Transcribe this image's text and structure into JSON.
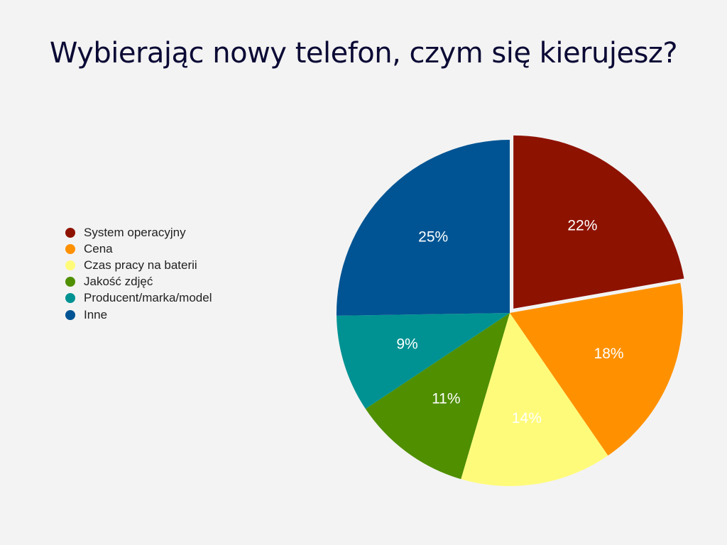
{
  "title": "Wybierając nowy telefon, czym się kierujesz?",
  "legend": [
    {
      "label": "System operacyjny",
      "color": "#8E1200"
    },
    {
      "label": "Cena",
      "color": "#FF9100"
    },
    {
      "label": "Czas pracy na baterii",
      "color": "#FFFB7A"
    },
    {
      "label": "Jakość zdjęć",
      "color": "#4F8F00"
    },
    {
      "label": "Producent/marka/model",
      "color": "#009292"
    },
    {
      "label": "Inne",
      "color": "#005493"
    }
  ],
  "chart_data": {
    "type": "pie",
    "title": "Wybierając nowy telefon, czym się kierujesz?",
    "categories": [
      "System operacyjny",
      "Cena",
      "Czas pracy na baterii",
      "Jakość zdjęć",
      "Producent/marka/model",
      "Inne"
    ],
    "values": [
      22,
      18,
      14,
      11,
      9,
      25
    ],
    "labels": [
      "22%",
      "18%",
      "14%",
      "11%",
      "9%",
      "25%"
    ],
    "colors": [
      "#8E1200",
      "#FF9100",
      "#FFFB7A",
      "#4F8F00",
      "#009292",
      "#005493"
    ],
    "exploded": [
      "System operacyjny"
    ],
    "legend_position": "left"
  }
}
